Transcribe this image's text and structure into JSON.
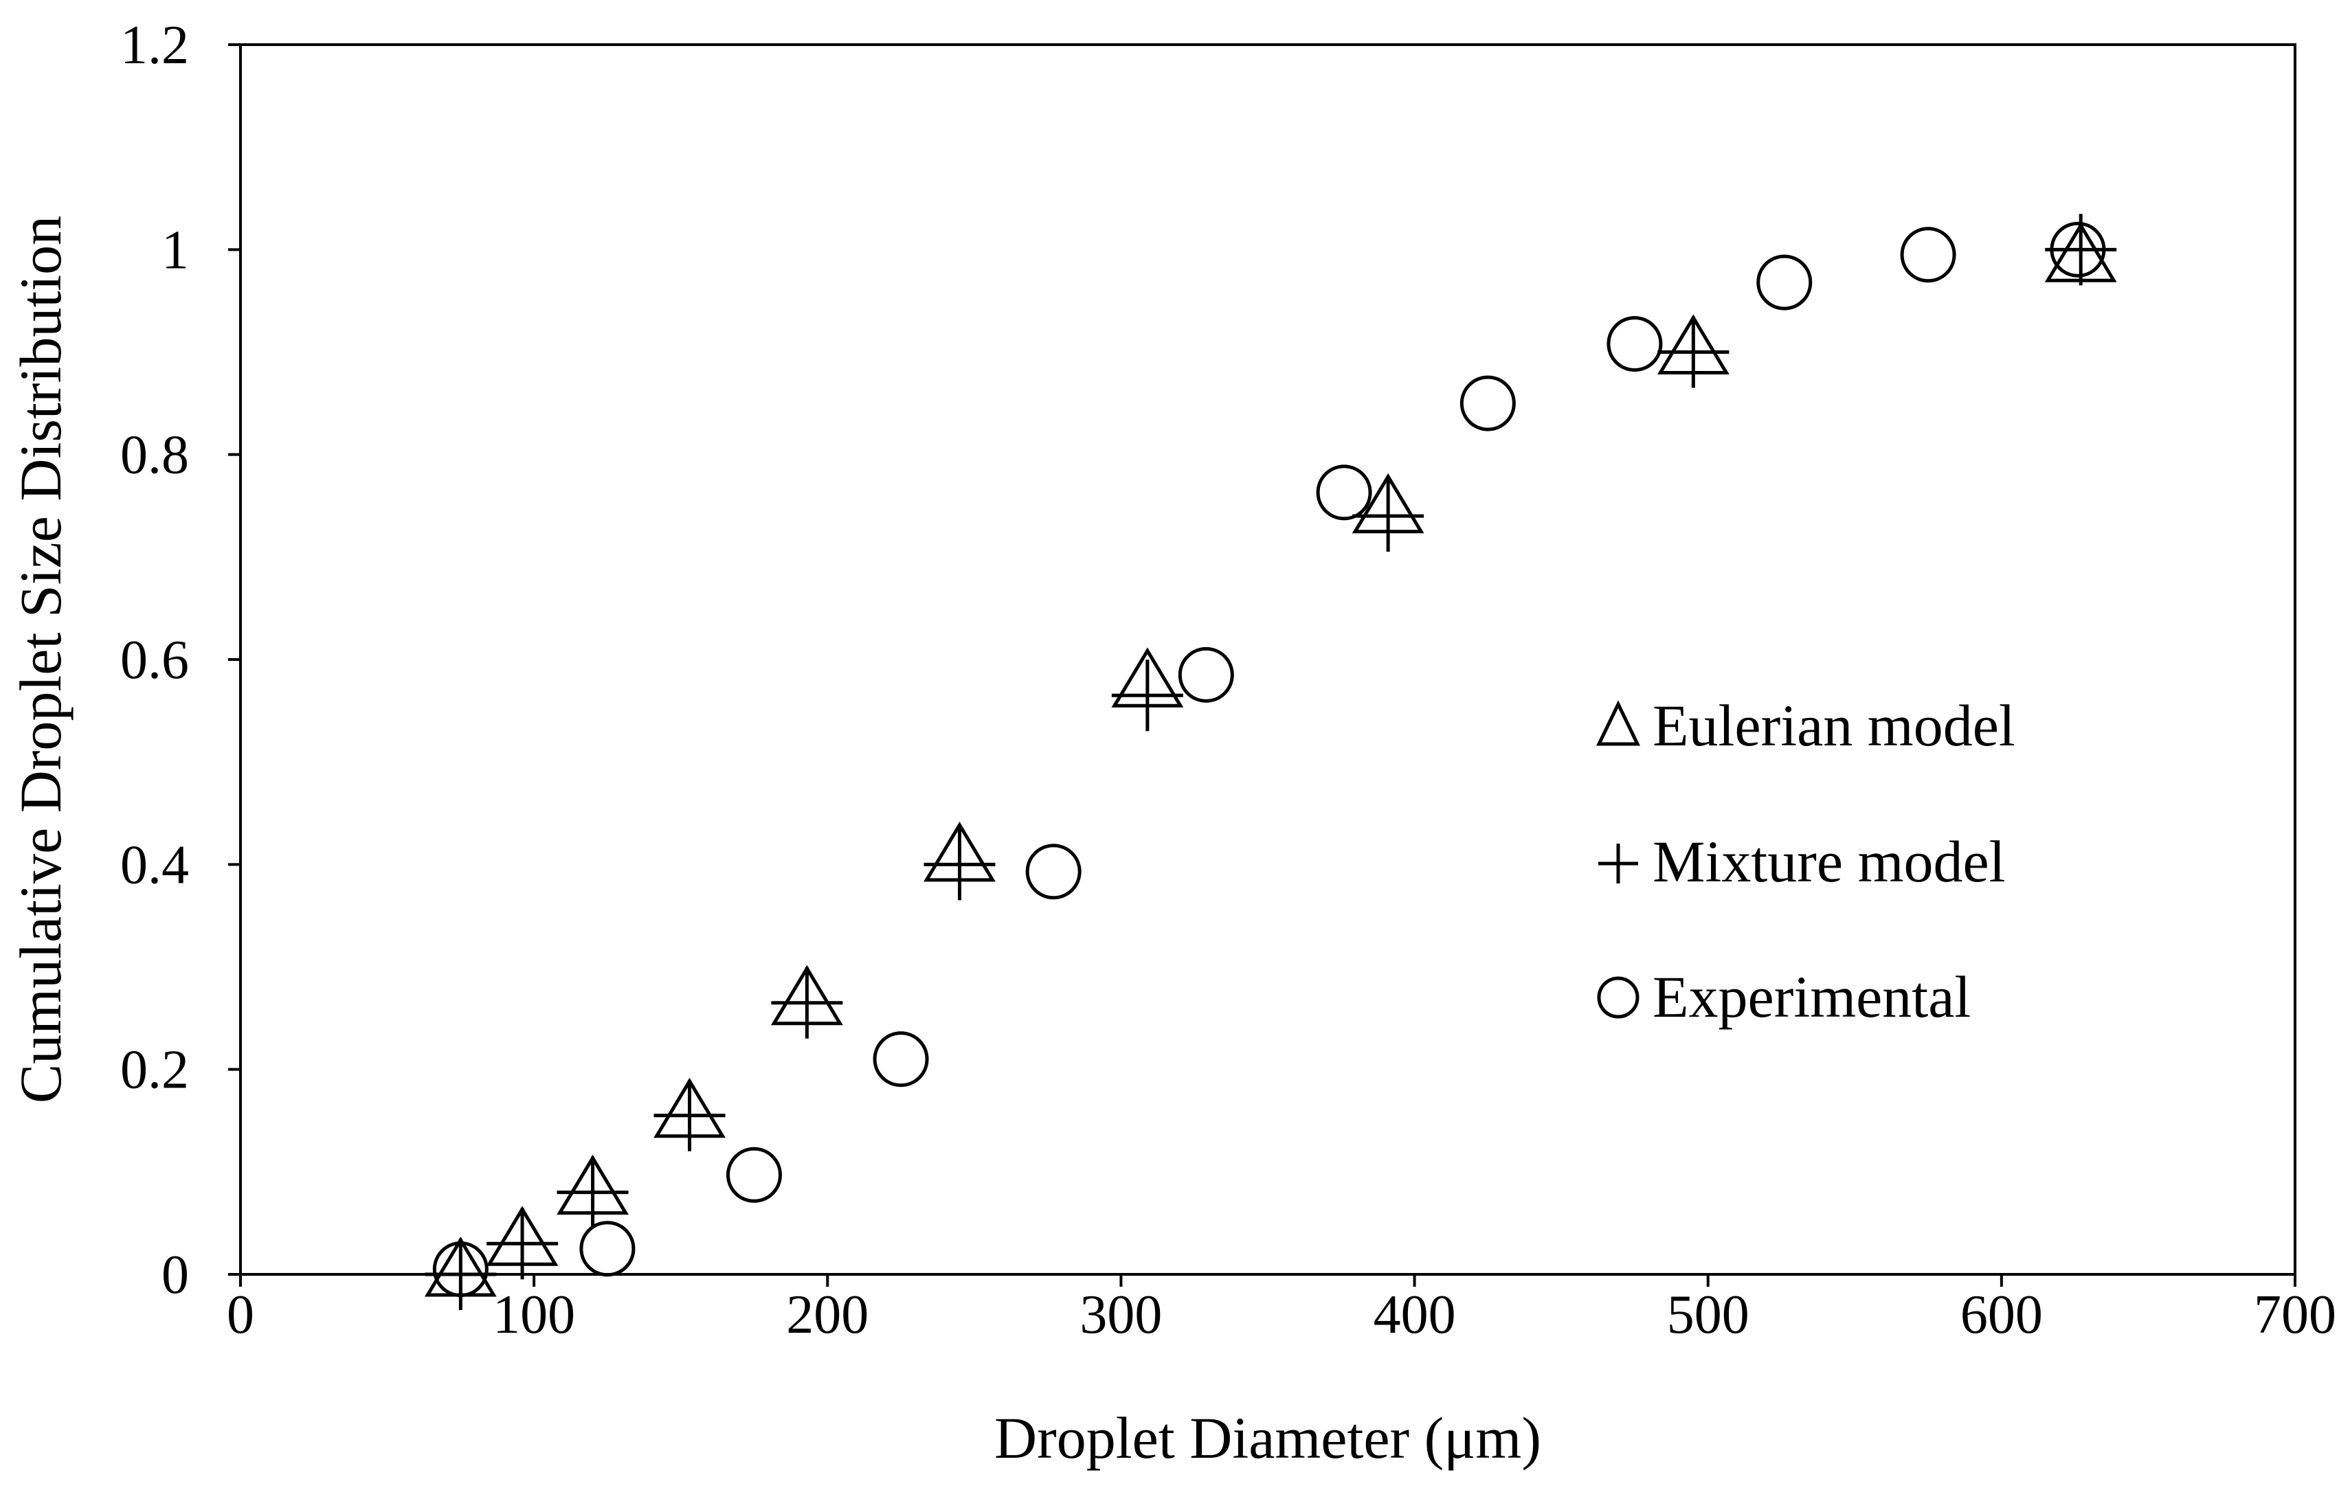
{
  "chart_data": {
    "type": "scatter",
    "title": "",
    "xlabel": "Droplet Diameter (μm)",
    "ylabel": "Cumulative Droplet Size Distribution",
    "xlim": [
      0,
      700
    ],
    "ylim": [
      0,
      1.2
    ],
    "x_ticks": [
      "0",
      "100",
      "200",
      "300",
      "400",
      "500",
      "600",
      "700"
    ],
    "y_ticks": [
      "0",
      "0.2",
      "0.4",
      "0.6",
      "0.8",
      "1",
      "1.2"
    ],
    "grid": false,
    "legend_position": "center-right",
    "series": [
      {
        "name": "Eulerian model",
        "marker": "triangle",
        "points": [
          [
            75,
            0.0
          ],
          [
            96,
            0.03
          ],
          [
            120,
            0.08
          ],
          [
            153,
            0.155
          ],
          [
            193,
            0.265
          ],
          [
            245,
            0.405
          ],
          [
            309,
            0.575
          ],
          [
            391,
            0.745
          ],
          [
            495,
            0.9
          ],
          [
            627,
            0.99
          ]
        ]
      },
      {
        "name": "Mixture model",
        "marker": "plus",
        "points": [
          [
            75,
            0.0
          ],
          [
            96,
            0.03
          ],
          [
            120,
            0.08
          ],
          [
            153,
            0.155
          ],
          [
            193,
            0.265
          ],
          [
            245,
            0.4
          ],
          [
            309,
            0.565
          ],
          [
            391,
            0.74
          ],
          [
            495,
            0.9
          ],
          [
            627,
            1.0
          ]
        ]
      },
      {
        "name": "Experimental",
        "marker": "circle",
        "points": [
          [
            75,
            0.005
          ],
          [
            125,
            0.025
          ],
          [
            175,
            0.097
          ],
          [
            225,
            0.21
          ],
          [
            277,
            0.393
          ],
          [
            329,
            0.585
          ],
          [
            376,
            0.763
          ],
          [
            425,
            0.85
          ],
          [
            475,
            0.908
          ],
          [
            526,
            0.968
          ],
          [
            575,
            0.995
          ],
          [
            626,
            1.0
          ]
        ]
      }
    ]
  }
}
